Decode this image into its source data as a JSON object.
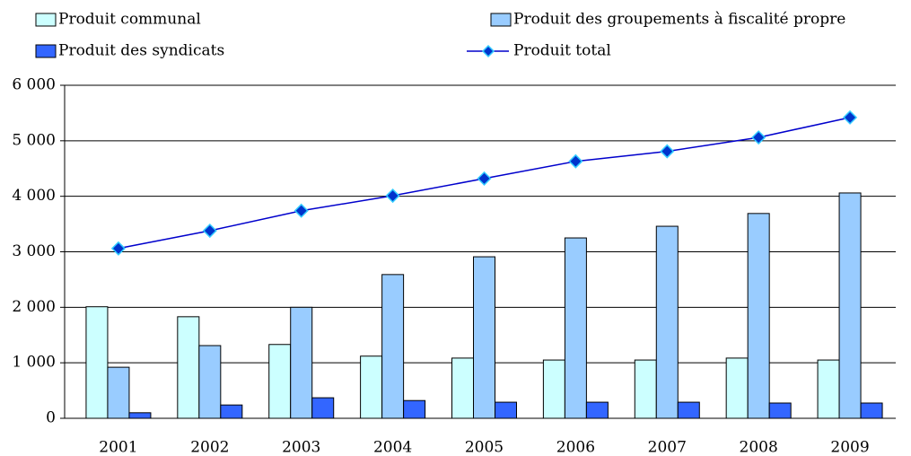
{
  "chart_data": {
    "type": "bar",
    "categories": [
      "2001",
      "2002",
      "2003",
      "2004",
      "2005",
      "2006",
      "2007",
      "2008",
      "2009"
    ],
    "series": [
      {
        "name": "Produit communal",
        "type": "bar",
        "color": "#ccffff",
        "values": [
          2010,
          1830,
          1330,
          1120,
          1085,
          1050,
          1050,
          1085,
          1050
        ]
      },
      {
        "name": "Produit des groupements à fiscalité propre",
        "type": "bar",
        "color": "#99ccff",
        "values": [
          920,
          1310,
          2000,
          2590,
          2910,
          3250,
          3460,
          3690,
          4060
        ]
      },
      {
        "name": "Produit des syndicats",
        "type": "bar",
        "color": "#3366ff",
        "values": [
          100,
          240,
          370,
          320,
          290,
          290,
          290,
          275,
          275
        ]
      },
      {
        "name": "Produit total",
        "type": "line",
        "color": "#0000cc",
        "values": [
          3060,
          3380,
          3740,
          4010,
          4320,
          4630,
          4810,
          5060,
          5420
        ]
      }
    ],
    "ylim": [
      0,
      6000
    ],
    "yticks": [
      0,
      {
        "value": 1000,
        "label": "1 000"
      },
      {
        "value": 2000,
        "label": "2 000"
      },
      {
        "value": 3000,
        "label": "3 000"
      },
      {
        "value": 4000,
        "label": "4 000"
      },
      {
        "value": 5000,
        "label": "5 000"
      },
      {
        "value": 6000,
        "label": "6 000"
      }
    ],
    "grid": true,
    "legend": "top"
  }
}
